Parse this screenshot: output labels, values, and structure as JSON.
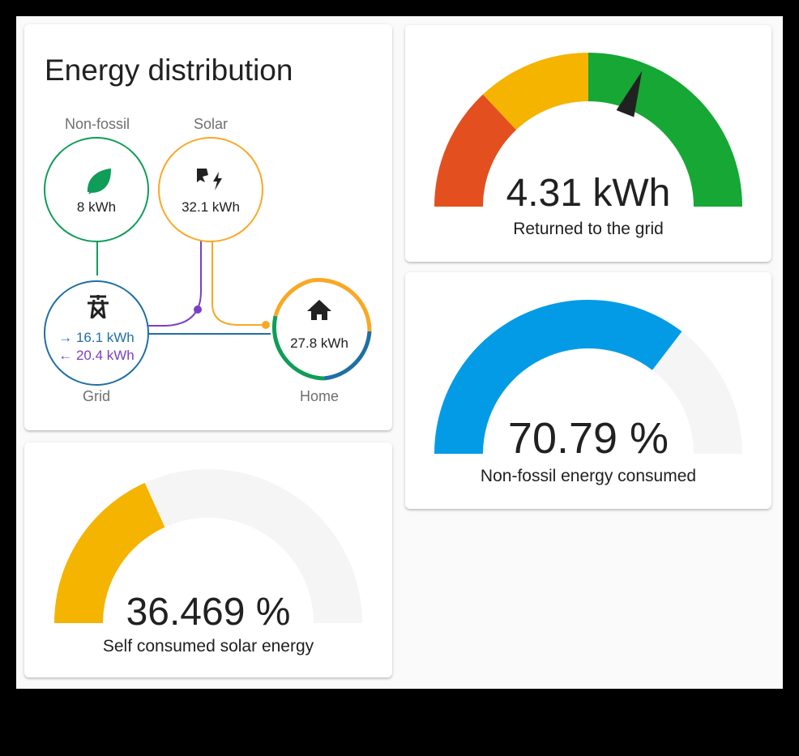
{
  "distribution": {
    "title": "Energy distribution",
    "nonfossil": {
      "label": "Non-fossil",
      "value": "8 kWh",
      "color": "#0f9d58"
    },
    "solar": {
      "label": "Solar",
      "value": "32.1 kWh",
      "color": "#f9a825"
    },
    "grid": {
      "label": "Grid",
      "in_value": "→ 16.1 kWh",
      "out_value": "← 20.4 kWh",
      "color": "#1f6fa3",
      "return_color": "#7b3fc4"
    },
    "home": {
      "label": "Home",
      "value": "27.8 kWh"
    }
  },
  "gauges": {
    "returned": {
      "value": "4.31 kWh",
      "label": "Returned to the grid",
      "needle_fraction": 0.62,
      "colors": [
        "#e34f1e",
        "#f4b400",
        "#16a735"
      ]
    },
    "nonfossil": {
      "value": "70.79 %",
      "label": "Non-fossil energy consumed",
      "fraction": 0.7079,
      "color": "#039be5"
    },
    "selfconsumed": {
      "value": "36.469 %",
      "label": "Self consumed solar energy",
      "fraction": 0.36469,
      "color": "#f4b400"
    }
  }
}
